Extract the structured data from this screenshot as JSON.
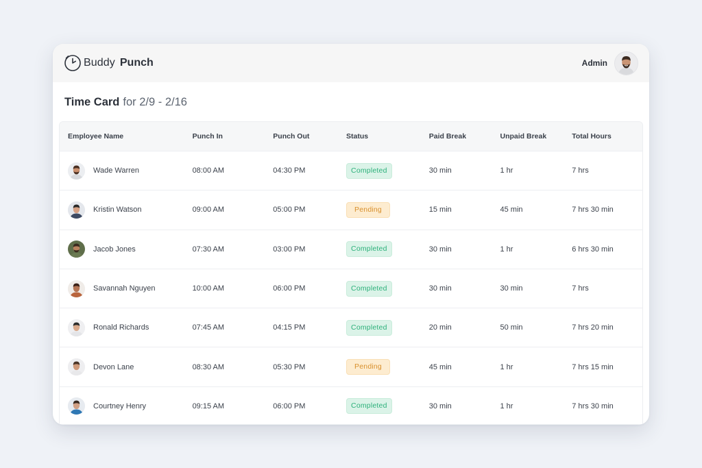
{
  "app": {
    "brand_word1": "Buddy",
    "brand_word2": "Punch",
    "user_name": "Admin"
  },
  "page": {
    "title": "Time Card",
    "subtitle": "for 2/9 - 2/16"
  },
  "table": {
    "columns": [
      "Employee Name",
      "Punch In",
      "Punch Out",
      "Status",
      "Paid Break",
      "Unpaid Break",
      "Total Hours"
    ],
    "rows": [
      {
        "name": "Wade Warren",
        "punch_in": "08:00 AM",
        "punch_out": "04:30 PM",
        "status": "Completed",
        "status_kind": "completed",
        "paid_break": "30 min",
        "unpaid_break": "1 hr",
        "total_hours": "7 hrs"
      },
      {
        "name": "Kristin Watson",
        "punch_in": "09:00 AM",
        "punch_out": "05:00 PM",
        "status": "Pending",
        "status_kind": "pending",
        "paid_break": "15 min",
        "unpaid_break": "45 min",
        "total_hours": "7 hrs 30 min"
      },
      {
        "name": "Jacob Jones",
        "punch_in": "07:30 AM",
        "punch_out": "03:00 PM",
        "status": "Completed",
        "status_kind": "completed",
        "paid_break": "30 min",
        "unpaid_break": "1 hr",
        "total_hours": "6 hrs 30 min"
      },
      {
        "name": "Savannah Nguyen",
        "punch_in": "10:00 AM",
        "punch_out": "06:00 PM",
        "status": "Completed",
        "status_kind": "completed",
        "paid_break": "30 min",
        "unpaid_break": "30 min",
        "total_hours": "7 hrs"
      },
      {
        "name": "Ronald Richards",
        "punch_in": "07:45 AM",
        "punch_out": "04:15 PM",
        "status": "Completed",
        "status_kind": "completed",
        "paid_break": "20 min",
        "unpaid_break": "50 min",
        "total_hours": "7 hrs 20 min"
      },
      {
        "name": "Devon Lane",
        "punch_in": "08:30 AM",
        "punch_out": "05:30 PM",
        "status": "Pending",
        "status_kind": "pending",
        "paid_break": "45 min",
        "unpaid_break": "1 hr",
        "total_hours": "7 hrs 15 min"
      },
      {
        "name": "Courtney Henry",
        "punch_in": "09:15 AM",
        "punch_out": "06:00 PM",
        "status": "Completed",
        "status_kind": "completed",
        "paid_break": "30 min",
        "unpaid_break": "1 hr",
        "total_hours": "7 hrs 30 min"
      }
    ]
  },
  "colors": {
    "completed_bg": "#dbf3e8",
    "completed_text": "#2cb07a",
    "pending_bg": "#fdecd0",
    "pending_text": "#d88f2b"
  },
  "icons": {
    "logo": "clock-icon",
    "avatar": "avatar-icon"
  }
}
